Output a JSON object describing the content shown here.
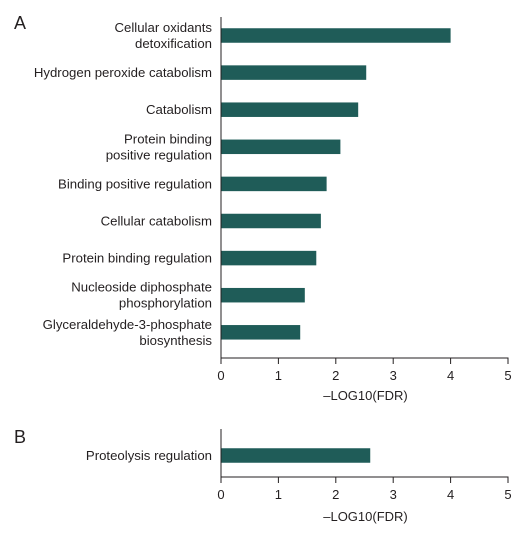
{
  "colors": {
    "bar": "#1f5c58",
    "axis": "#231f20",
    "text": "#231f20"
  },
  "chart_data": [
    {
      "type": "bar",
      "orientation": "horizontal",
      "panel_label": "A",
      "categories": [
        [
          "Cellular oxidants",
          "detoxification"
        ],
        [
          "Hydrogen peroxide catabolism"
        ],
        [
          "Catabolism"
        ],
        [
          "Protein binding",
          "positive regulation"
        ],
        [
          "Binding positive regulation"
        ],
        [
          "Cellular catabolism"
        ],
        [
          "Protein binding regulation"
        ],
        [
          "Nucleoside diphosphate",
          "phosphorylation"
        ],
        [
          "Glyceraldehyde-3-phosphate",
          "biosynthesis"
        ]
      ],
      "values": [
        4.0,
        2.53,
        2.39,
        2.08,
        1.84,
        1.74,
        1.66,
        1.46,
        1.38
      ],
      "xlabel": "–LOG10(FDR)",
      "xlim": [
        0,
        5
      ],
      "xticks": [
        "0",
        "1",
        "2",
        "3",
        "4",
        "5"
      ],
      "grid": false
    },
    {
      "type": "bar",
      "orientation": "horizontal",
      "panel_label": "B",
      "categories": [
        [
          "Proteolysis regulation"
        ]
      ],
      "values": [
        2.6
      ],
      "xlabel": "–LOG10(FDR)",
      "xlim": [
        0,
        5
      ],
      "xticks": [
        "0",
        "1",
        "2",
        "3",
        "4",
        "5"
      ],
      "grid": false
    }
  ]
}
